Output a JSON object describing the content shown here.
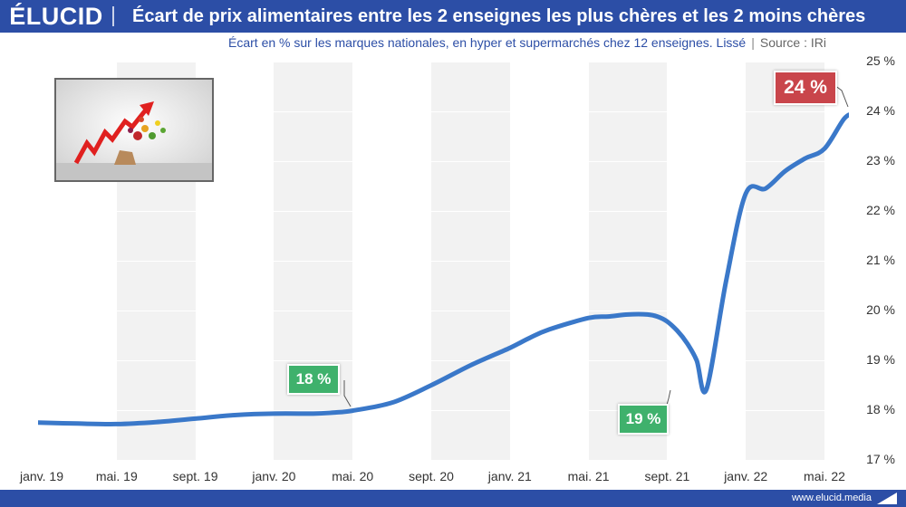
{
  "header": {
    "logo": "ÉLUCID"
  },
  "chart_data": {
    "type": "line",
    "title": "Écart de prix alimentaires entre les 2 enseignes les plus chères et les 2 moins chères",
    "subtitle": "Écart en % sur les marques nationales, en hyper et supermarchés chez 12 enseignes. Lissé",
    "source": "Source : IRi",
    "ylim": [
      17,
      25
    ],
    "y_ticks": [
      "25 %",
      "24 %",
      "23 %",
      "22 %",
      "21 %",
      "20 %",
      "19 %",
      "18 %",
      "17 %"
    ],
    "x_ticks": [
      "janv. 19",
      "mai. 19",
      "sept. 19",
      "janv. 20",
      "mai. 20",
      "sept. 20",
      "janv. 21",
      "mai. 21",
      "sept. 21",
      "janv. 22",
      "mai. 22"
    ],
    "x_unit": "months since janv. 19",
    "x": [
      0,
      2,
      4,
      6,
      8,
      10,
      12,
      14,
      15,
      16,
      18,
      20,
      22,
      24,
      25,
      26,
      28,
      29,
      30,
      31,
      31.5,
      32,
      32.5,
      33,
      33.5,
      34,
      35,
      36,
      37,
      38,
      39,
      40,
      41,
      41.5,
      42
    ],
    "values": [
      17.75,
      17.73,
      17.72,
      17.76,
      17.83,
      17.9,
      17.93,
      17.93,
      17.95,
      17.99,
      18.15,
      18.5,
      18.9,
      19.25,
      19.45,
      19.62,
      19.85,
      19.88,
      19.92,
      19.92,
      19.88,
      19.78,
      19.6,
      19.35,
      19.0,
      18.42,
      20.6,
      22.35,
      22.45,
      22.8,
      23.05,
      23.25,
      23.85,
      23.95,
      24.02
    ],
    "color": "#3a78c9",
    "callouts": [
      {
        "text": "18 %",
        "color": "#3fb16c"
      },
      {
        "text": "19 %",
        "color": "#3fb16c"
      },
      {
        "text": "24 %",
        "color": "#c9454b"
      }
    ]
  },
  "footer": {
    "url": "www.elucid.media"
  }
}
